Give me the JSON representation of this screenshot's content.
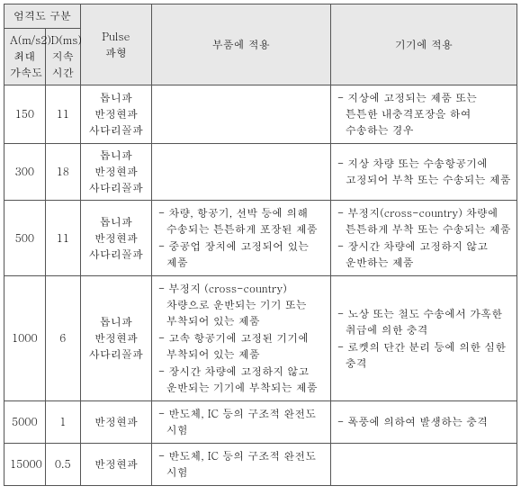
{
  "header": {
    "group": "엄격도 구분",
    "colA": "A(m/s2)\n최대\n가속도",
    "colD": "D(ms)\n지속\n시간",
    "pulse": "Pulse\n파형",
    "parts": "부품에 적용",
    "equip": "기기에 적용"
  },
  "rows": [
    {
      "a": "150",
      "d": "11",
      "pulse_lines": [
        "톱니파",
        "반정현파",
        "사다리꼴파"
      ],
      "parts_items": [],
      "equip_items": [
        "지상에 고정되는 제품 또는 튼튼한 내충격포장을 하여 수송하는 경우"
      ]
    },
    {
      "a": "300",
      "d": "18",
      "pulse_lines": [
        "톱니파",
        "반정현파",
        "사다리꼴파"
      ],
      "parts_items": [],
      "equip_items": [
        "지상 차량 또는 수송항공기에 고정되어 부착 또는 수송되는 제품"
      ]
    },
    {
      "a": "500",
      "d": "11",
      "pulse_lines": [
        "톱니파",
        "반정현파",
        "사다리꼴파"
      ],
      "parts_items": [
        "차량, 항공기, 선박 등에 의해 수송되는 튼튼하게 포장된 제품",
        "중공업 장치에 고정되어 있는 제품"
      ],
      "equip_items": [
        "부정지(cross-country) 차량에 튼튼하게 부착 또는 수송되는 제품",
        "장시간 차량에 고정하지 않고 운반하는 제품"
      ]
    },
    {
      "a": "1000",
      "d": "6",
      "pulse_lines": [
        "톱니파",
        "반정현파",
        "사다리꼴파"
      ],
      "parts_items": [
        "부정지 (cross-country) 차량으로 운반되는 기기 또는 부착되어 있는 제품",
        "고속 항공기에 고정된 기기에 부착되어 있는 제품",
        "장시간 차량에 고정하지 않고 운반되는 기기에 부착되는 제품"
      ],
      "equip_items": [
        "노상 또는 철도 수송에서 가혹한 취급에 의한 충격",
        "로켓의 단간 분리 등에 의한 심한 충격"
      ]
    },
    {
      "a": "5000",
      "d": "1",
      "pulse_lines": [
        "반정현파"
      ],
      "parts_items": [
        "반도체, IC 등의 구조적 완전도 시험"
      ],
      "equip_items": [
        "폭풍에 의하여 발생하는 충격"
      ]
    },
    {
      "a": "15000",
      "d": "0.5",
      "pulse_lines": [
        "반정현파"
      ],
      "parts_items": [
        "반도체, IC 등의 구조적 완전도 시험"
      ],
      "equip_items": []
    }
  ]
}
